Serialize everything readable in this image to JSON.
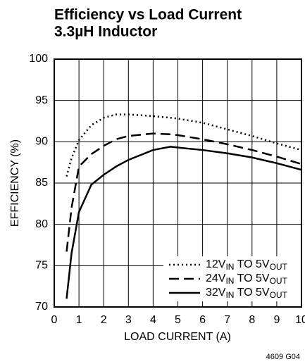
{
  "chart_data": {
    "type": "line",
    "title": "Efficiency vs Load Current",
    "subtitle": "3.3µH Inductor",
    "xlabel": "LOAD CURRENT (A)",
    "ylabel": "EFFICIENCY (%)",
    "note": "4609 G04",
    "x": [
      0.5,
      0.7,
      1,
      1.5,
      2,
      2.5,
      3,
      4,
      4.7,
      5,
      6,
      7,
      8,
      9,
      10
    ],
    "series": [
      {
        "name": "12VIN TO 5VOUT",
        "color": "#000000",
        "dash": "dotted",
        "values": [
          85.8,
          88,
          90.2,
          92,
          92.9,
          93.3,
          93.3,
          93.1,
          92.9,
          92.8,
          92.3,
          91.5,
          90.7,
          89.8,
          89.0
        ]
      },
      {
        "name": "24VIN TO 5VOUT",
        "color": "#000000",
        "dash": "dashed",
        "values": [
          76.7,
          82,
          87,
          88.5,
          89.5,
          90.3,
          90.7,
          91.0,
          90.9,
          90.8,
          90.3,
          89.7,
          89.0,
          88.2,
          87.3
        ]
      },
      {
        "name": "32VIN TO 5VOUT",
        "color": "#000000",
        "dash": "solid",
        "values": [
          71,
          76.5,
          81.5,
          84.8,
          86,
          87,
          87.8,
          89,
          89.4,
          89.3,
          89,
          88.6,
          88.1,
          87.4,
          86.6
        ]
      }
    ],
    "xlim": [
      0,
      10
    ],
    "xticks": [
      0,
      1,
      2,
      3,
      4,
      5,
      6,
      7,
      8,
      9,
      10
    ],
    "ylim": [
      70,
      100
    ],
    "yticks": [
      70,
      75,
      80,
      85,
      90,
      95,
      100
    ],
    "grid": true,
    "legend": "lower right"
  }
}
